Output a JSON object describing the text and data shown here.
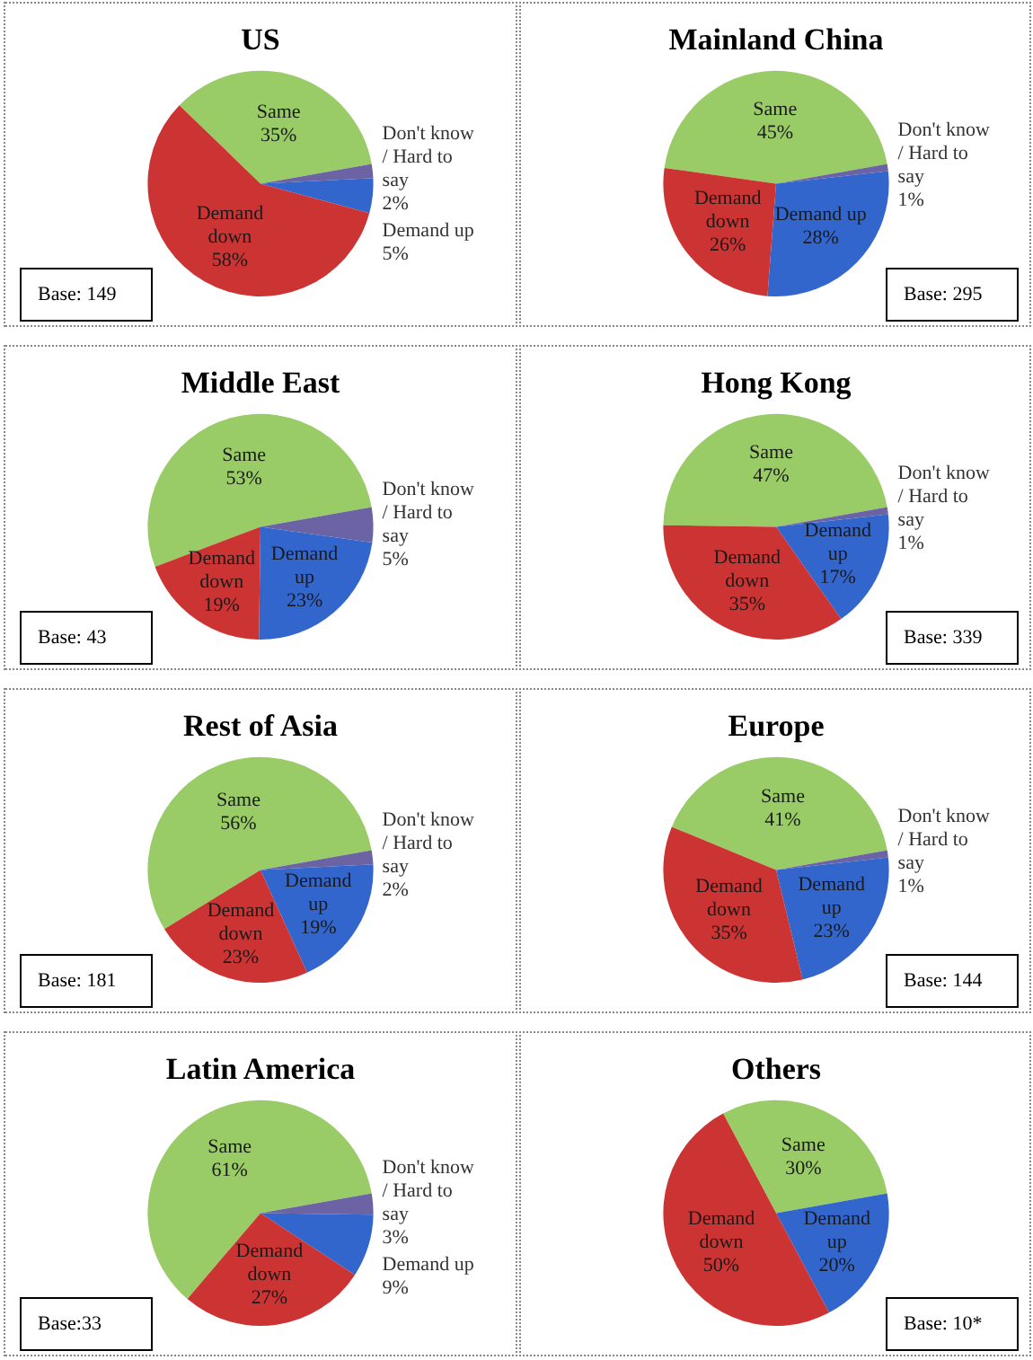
{
  "chart_data": [
    {
      "type": "pie",
      "title": "US",
      "categories": [
        "Same",
        "Don't know / Hard to say",
        "Demand up",
        "Demand down"
      ],
      "values": [
        35,
        2,
        5,
        58
      ],
      "value_labels": [
        "35%",
        "2%",
        "5%",
        "58%"
      ],
      "colors": [
        "#99cc66",
        "#6b63a3",
        "#3366cc",
        "#cc3333"
      ],
      "annotations": [
        "Base: 149"
      ]
    },
    {
      "type": "pie",
      "title": "Mainland China",
      "categories": [
        "Same",
        "Don't know / Hard to say",
        "Demand up",
        "Demand down"
      ],
      "values": [
        45,
        1,
        28,
        26
      ],
      "value_labels": [
        "45%",
        "1%",
        "28%",
        "26%"
      ],
      "colors": [
        "#99cc66",
        "#6b63a3",
        "#3366cc",
        "#cc3333"
      ],
      "annotations": [
        "Base: 295"
      ]
    },
    {
      "type": "pie",
      "title": "Middle East",
      "categories": [
        "Same",
        "Don't know / Hard to say",
        "Demand up",
        "Demand down"
      ],
      "values": [
        53,
        5,
        23,
        19
      ],
      "value_labels": [
        "53%",
        "5%",
        "23%",
        "19%"
      ],
      "colors": [
        "#99cc66",
        "#6b63a3",
        "#3366cc",
        "#cc3333"
      ],
      "annotations": [
        "Base: 43"
      ]
    },
    {
      "type": "pie",
      "title": "Hong Kong",
      "categories": [
        "Same",
        "Don't know / Hard to say",
        "Demand up",
        "Demand down"
      ],
      "values": [
        47,
        1,
        17,
        35
      ],
      "value_labels": [
        "47%",
        "1%",
        "17%",
        "35%"
      ],
      "colors": [
        "#99cc66",
        "#6b63a3",
        "#3366cc",
        "#cc3333"
      ],
      "annotations": [
        "Base: 339"
      ]
    },
    {
      "type": "pie",
      "title": "Rest of Asia",
      "categories": [
        "Same",
        "Don't know / Hard to say",
        "Demand up",
        "Demand down"
      ],
      "values": [
        56,
        2,
        19,
        23
      ],
      "value_labels": [
        "56%",
        "2%",
        "19%",
        "23%"
      ],
      "colors": [
        "#99cc66",
        "#6b63a3",
        "#3366cc",
        "#cc3333"
      ],
      "annotations": [
        "Base: 181"
      ]
    },
    {
      "type": "pie",
      "title": "Europe",
      "categories": [
        "Same",
        "Don't know / Hard to say",
        "Demand up",
        "Demand down"
      ],
      "values": [
        41,
        1,
        23,
        35
      ],
      "value_labels": [
        "41%",
        "1%",
        "23%",
        "35%"
      ],
      "colors": [
        "#99cc66",
        "#6b63a3",
        "#3366cc",
        "#cc3333"
      ],
      "annotations": [
        "Base: 144"
      ]
    },
    {
      "type": "pie",
      "title": "Latin America",
      "categories": [
        "Same",
        "Don't know / Hard to say",
        "Demand up",
        "Demand down"
      ],
      "values": [
        61,
        3,
        9,
        27
      ],
      "value_labels": [
        "61%",
        "3%",
        "9%",
        "27%"
      ],
      "colors": [
        "#99cc66",
        "#6b63a3",
        "#3366cc",
        "#cc3333"
      ],
      "annotations": [
        "Base:33"
      ]
    },
    {
      "type": "pie",
      "title": "Others",
      "categories": [
        "Same",
        "Demand up",
        "Demand down"
      ],
      "values": [
        30,
        20,
        50
      ],
      "value_labels": [
        "30%",
        "20%",
        "50%"
      ],
      "colors": [
        "#99cc66",
        "#3366cc",
        "#cc3333"
      ],
      "annotations": [
        "Base: 10*"
      ]
    }
  ]
}
